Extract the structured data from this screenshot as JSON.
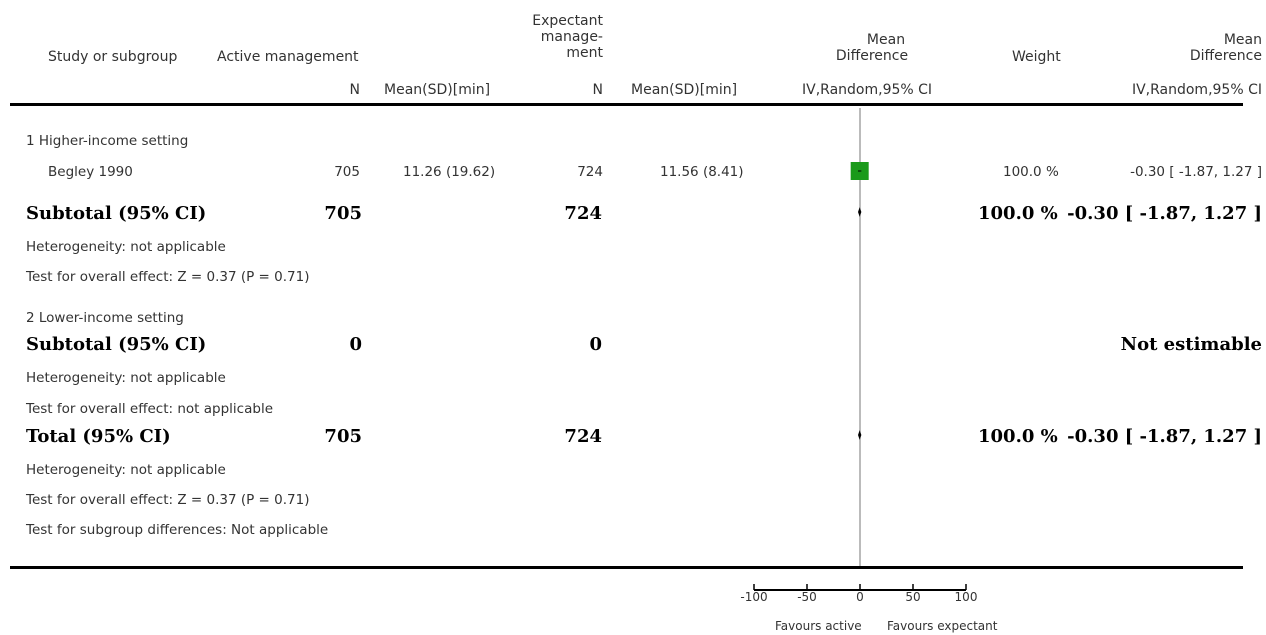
{
  "chart_data": {
    "type": "forest",
    "columns": {
      "study": "Study or subgroup",
      "active_group": "Active management",
      "expectant_group": "Expectant management",
      "n": "N",
      "mean_sd": "Mean(SD)[min]",
      "plot_header": "Mean Difference",
      "plot_method": "IV,Random,95% CI",
      "weight": "Weight",
      "md_header": "Mean Difference",
      "md_method": "IV,Random,95% CI"
    },
    "subgroups": [
      {
        "label": "1 Higher-income setting",
        "studies": [
          {
            "name": "Begley 1990",
            "active_n": "705",
            "active_mean_sd": "11.26 (19.62)",
            "expectant_n": "724",
            "expectant_mean_sd": "11.56 (8.41)",
            "weight": "100.0 %",
            "md_text": "-0.30 [ -1.87, 1.27 ]",
            "md": -0.3,
            "ci_low": -1.87,
            "ci_high": 1.27,
            "weight_value": 100.0
          }
        ],
        "subtotal": {
          "label": "Subtotal (95% CI)",
          "active_n": "705",
          "expectant_n": "724",
          "weight": "100.0 %",
          "md_text": "-0.30 [ -1.87, 1.27 ]",
          "md": -0.3,
          "ci_low": -1.87,
          "ci_high": 1.27
        },
        "heterogeneity": "Heterogeneity: not applicable",
        "overall_effect": "Test for overall effect: Z = 0.37 (P = 0.71)"
      },
      {
        "label": "2 Lower-income setting",
        "studies": [],
        "subtotal": {
          "label": "Subtotal (95% CI)",
          "active_n": "0",
          "expectant_n": "0",
          "weight": "",
          "md_text": "Not estimable",
          "md": 0,
          "ci_low": 0,
          "ci_high": 0
        },
        "heterogeneity": "Heterogeneity: not applicable",
        "overall_effect": "Test for overall effect: not applicable"
      }
    ],
    "total": {
      "label": "Total (95% CI)",
      "active_n": "705",
      "expectant_n": "724",
      "weight": "100.0 %",
      "md_text": "-0.30 [ -1.87, 1.27 ]",
      "md": -0.3,
      "ci_low": -1.87,
      "ci_high": 1.27,
      "heterogeneity": "Heterogeneity: not applicable",
      "overall_effect": "Test for overall effect: Z = 0.37 (P = 0.71)",
      "subgroup_diff": "Test for subgroup differences: Not applicable"
    },
    "axis": {
      "min": -100,
      "max": 100,
      "ticks": [
        -100,
        -50,
        0,
        50,
        100
      ],
      "tick_labels": [
        "-100",
        "-50",
        "0",
        "50",
        "100"
      ],
      "left_label": "Favours active",
      "right_label": "Favours expectant"
    },
    "colors": {
      "study_marker": "#1a9a1a",
      "lines": "#000000",
      "zero_line": "#777777"
    }
  }
}
